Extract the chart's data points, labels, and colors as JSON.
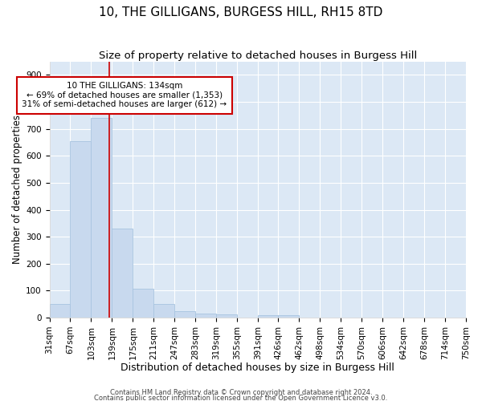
{
  "title": "10, THE GILLIGANS, BURGESS HILL, RH15 8TD",
  "subtitle": "Size of property relative to detached houses in Burgess Hill",
  "xlabel": "Distribution of detached houses by size in Burgess Hill",
  "ylabel": "Number of detached properties",
  "bin_edges": [
    31,
    67,
    103,
    139,
    175,
    211,
    247,
    283,
    319,
    355,
    391,
    426,
    462,
    498,
    534,
    570,
    606,
    642,
    678,
    714,
    750
  ],
  "bar_heights": [
    50,
    655,
    740,
    330,
    108,
    52,
    25,
    15,
    11,
    0,
    10,
    10,
    0,
    0,
    0,
    0,
    0,
    0,
    0,
    0
  ],
  "bar_color": "#c8d9ee",
  "bar_edge_color": "#a8c4e0",
  "property_size": 134,
  "red_line_color": "#cc0000",
  "annotation_line1": "10 THE GILLIGANS: 134sqm",
  "annotation_line2": "← 69% of detached houses are smaller (1,353)",
  "annotation_line3": "31% of semi-detached houses are larger (612) →",
  "annotation_box_color": "#ffffff",
  "annotation_box_edge_color": "#cc0000",
  "ylim": [
    0,
    950
  ],
  "yticks": [
    0,
    100,
    200,
    300,
    400,
    500,
    600,
    700,
    800,
    900
  ],
  "background_color": "#dce8f5",
  "grid_color": "#ffffff",
  "footer_line1": "Contains HM Land Registry data © Crown copyright and database right 2024.",
  "footer_line2": "Contains public sector information licensed under the Open Government Licence v3.0.",
  "title_fontsize": 11,
  "subtitle_fontsize": 9.5,
  "xlabel_fontsize": 9,
  "ylabel_fontsize": 8.5,
  "tick_fontsize": 7.5,
  "annotation_fontsize": 7.5,
  "footer_fontsize": 6
}
